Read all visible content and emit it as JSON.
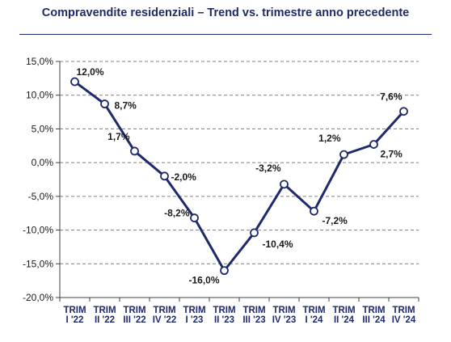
{
  "chart_data": {
    "type": "line",
    "title": "Compravendite residenziali – Trend vs. trimestre anno precedente",
    "xlabel": "",
    "ylabel": "",
    "categories": [
      [
        "TRIM",
        "I '22"
      ],
      [
        "TRIM",
        "II '22"
      ],
      [
        "TRIM",
        "III '22"
      ],
      [
        "TRIM",
        "IV '22"
      ],
      [
        "TRIM",
        "I '23"
      ],
      [
        "TRIM",
        "II '23"
      ],
      [
        "TRIM",
        "III '23"
      ],
      [
        "TRIM",
        "IV '23"
      ],
      [
        "TRIM",
        "I '24"
      ],
      [
        "TRIM",
        "II '24"
      ],
      [
        "TRIM",
        "III '24"
      ],
      [
        "TRIM",
        "IV '24"
      ]
    ],
    "values": [
      12.0,
      8.7,
      1.7,
      -2.0,
      -8.2,
      -16.0,
      -10.4,
      -3.2,
      -7.2,
      1.2,
      2.7,
      7.6
    ],
    "data_labels": [
      "12,0%",
      "8,7%",
      "1,7%",
      "-2,0%",
      "-8,2%",
      "-16,0%",
      "-10,4%",
      "-3,2%",
      "-7,2%",
      "1,2%",
      "2,7%",
      "7,6%"
    ],
    "ylim": [
      -20,
      15
    ],
    "yticks": [
      15,
      10,
      5,
      0,
      -5,
      -10,
      -15,
      -20
    ],
    "ytick_labels": [
      "15,0%",
      "10,0%",
      "5,0%",
      "0,0%",
      "-5,0%",
      "-10,0%",
      "-15,0%",
      "-20,0%"
    ],
    "grid": "horizontal-dashed",
    "legend": "none",
    "colors": {
      "line": "#1f2a6b",
      "marker_fill": "#ffffff",
      "grid": "#7f7f7f",
      "title": "#1f2a6b"
    }
  }
}
